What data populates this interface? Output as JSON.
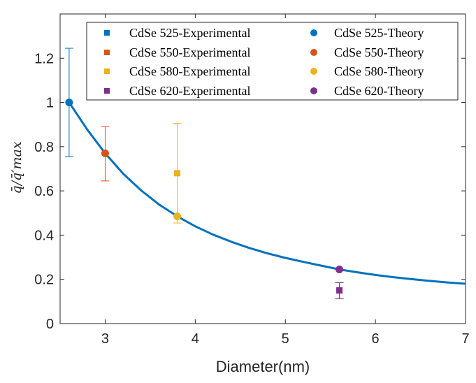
{
  "chart_data": {
    "type": "scatter",
    "title": "",
    "xlabel": "Diameter(nm)",
    "ylabel": "q̄/q̄′max",
    "xlim": [
      2.5,
      7
    ],
    "ylim": [
      0,
      1.4
    ],
    "xticks": [
      3,
      4,
      5,
      6,
      7
    ],
    "yticks": [
      0,
      0.2,
      0.4,
      0.6,
      0.8,
      1,
      1.2
    ],
    "xtick_labels": [
      "3",
      "4",
      "5",
      "6",
      "7"
    ],
    "ytick_labels": [
      "0",
      "0.2",
      "0.4",
      "0.6",
      "0.8",
      "1",
      "1.2"
    ],
    "grid": false,
    "legend_position": "top-right",
    "experimental_series": [
      {
        "name": "CdSe 525-Experimental",
        "color": "#0072BD",
        "x": 2.6,
        "y": null,
        "err_low": 0.755,
        "err_high": 1.245
      },
      {
        "name": "CdSe 550-Experimental",
        "color": "#D95319",
        "x": 3.0,
        "y": null,
        "err_low": 0.645,
        "err_high": 0.89
      },
      {
        "name": "CdSe 580-Experimental",
        "color": "#EDB120",
        "x": 3.8,
        "y": 0.68,
        "err_low": 0.455,
        "err_high": 0.905
      },
      {
        "name": "CdSe 620-Experimental",
        "color": "#7E2F8E",
        "x": 5.6,
        "y": 0.15,
        "err_low": 0.112,
        "err_high": 0.185
      }
    ],
    "theory_series": [
      {
        "name": "CdSe 525-Theory",
        "color": "#0072BD",
        "x": 2.6,
        "y": 1.0
      },
      {
        "name": "CdSe 550-Theory",
        "color": "#D95319",
        "x": 3.0,
        "y": 0.77
      },
      {
        "name": "CdSe 580-Theory",
        "color": "#EDB120",
        "x": 3.8,
        "y": 0.485
      },
      {
        "name": "CdSe 620-Theory",
        "color": "#7E2F8E",
        "x": 5.6,
        "y": 0.245
      }
    ],
    "theory_curve": {
      "color": "#0072BD",
      "x": [
        2.6,
        2.8,
        3.0,
        3.2,
        3.4,
        3.6,
        3.8,
        4.0,
        4.2,
        4.4,
        4.6,
        4.8,
        5.0,
        5.2,
        5.4,
        5.6,
        5.8,
        6.0,
        6.2,
        6.4,
        6.6,
        6.8,
        7.0
      ],
      "y": [
        1.0,
        0.878,
        0.77,
        0.678,
        0.602,
        0.538,
        0.485,
        0.44,
        0.402,
        0.37,
        0.342,
        0.318,
        0.297,
        0.279,
        0.262,
        0.245,
        0.232,
        0.22,
        0.21,
        0.201,
        0.193,
        0.186,
        0.18
      ]
    }
  }
}
